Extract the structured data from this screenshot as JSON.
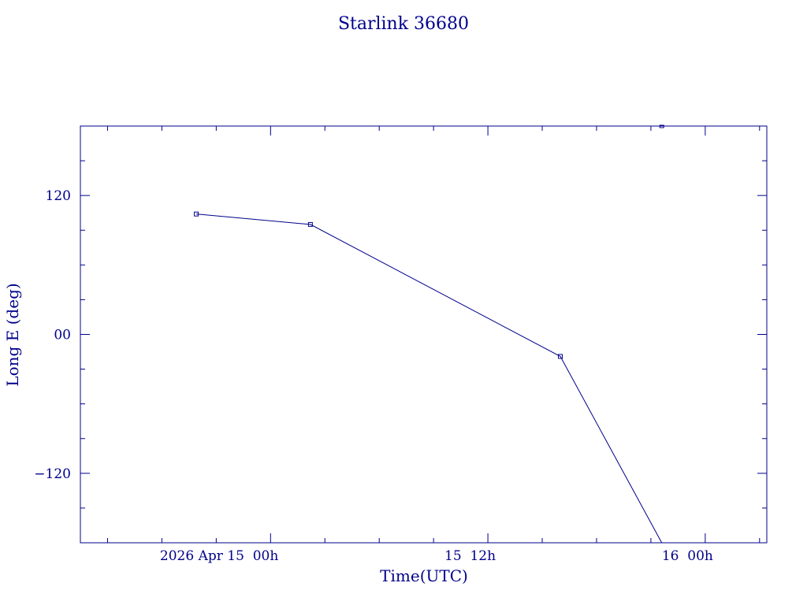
{
  "chart_data": {
    "type": "line",
    "title": "Starlink 36680",
    "xlabel": "Time(UTC)",
    "ylabel": "Long E (deg)",
    "x_tick_labels": [
      "2026 Apr 15  00h",
      "15  12h",
      "16  00h"
    ],
    "x_tick_hours": [
      0,
      12,
      24
    ],
    "y_ticks": [
      120,
      0,
      -120
    ],
    "y_tick_labels": [
      "120",
      "00",
      "−120"
    ],
    "xlim_hours": [
      -10.5,
      27.4
    ],
    "ylim": [
      -180,
      180
    ],
    "grid": false,
    "series": [
      {
        "points": [
          {
            "hours": -4.1,
            "lon": 104
          },
          {
            "hours": 2.2,
            "lon": 95
          },
          {
            "hours": 16.0,
            "lon": -19
          },
          {
            "hours": 21.6,
            "lon": -180
          }
        ]
      },
      {
        "points": [
          {
            "hours": 21.6,
            "lon": 180
          }
        ]
      }
    ],
    "line_color": "#00008b"
  }
}
